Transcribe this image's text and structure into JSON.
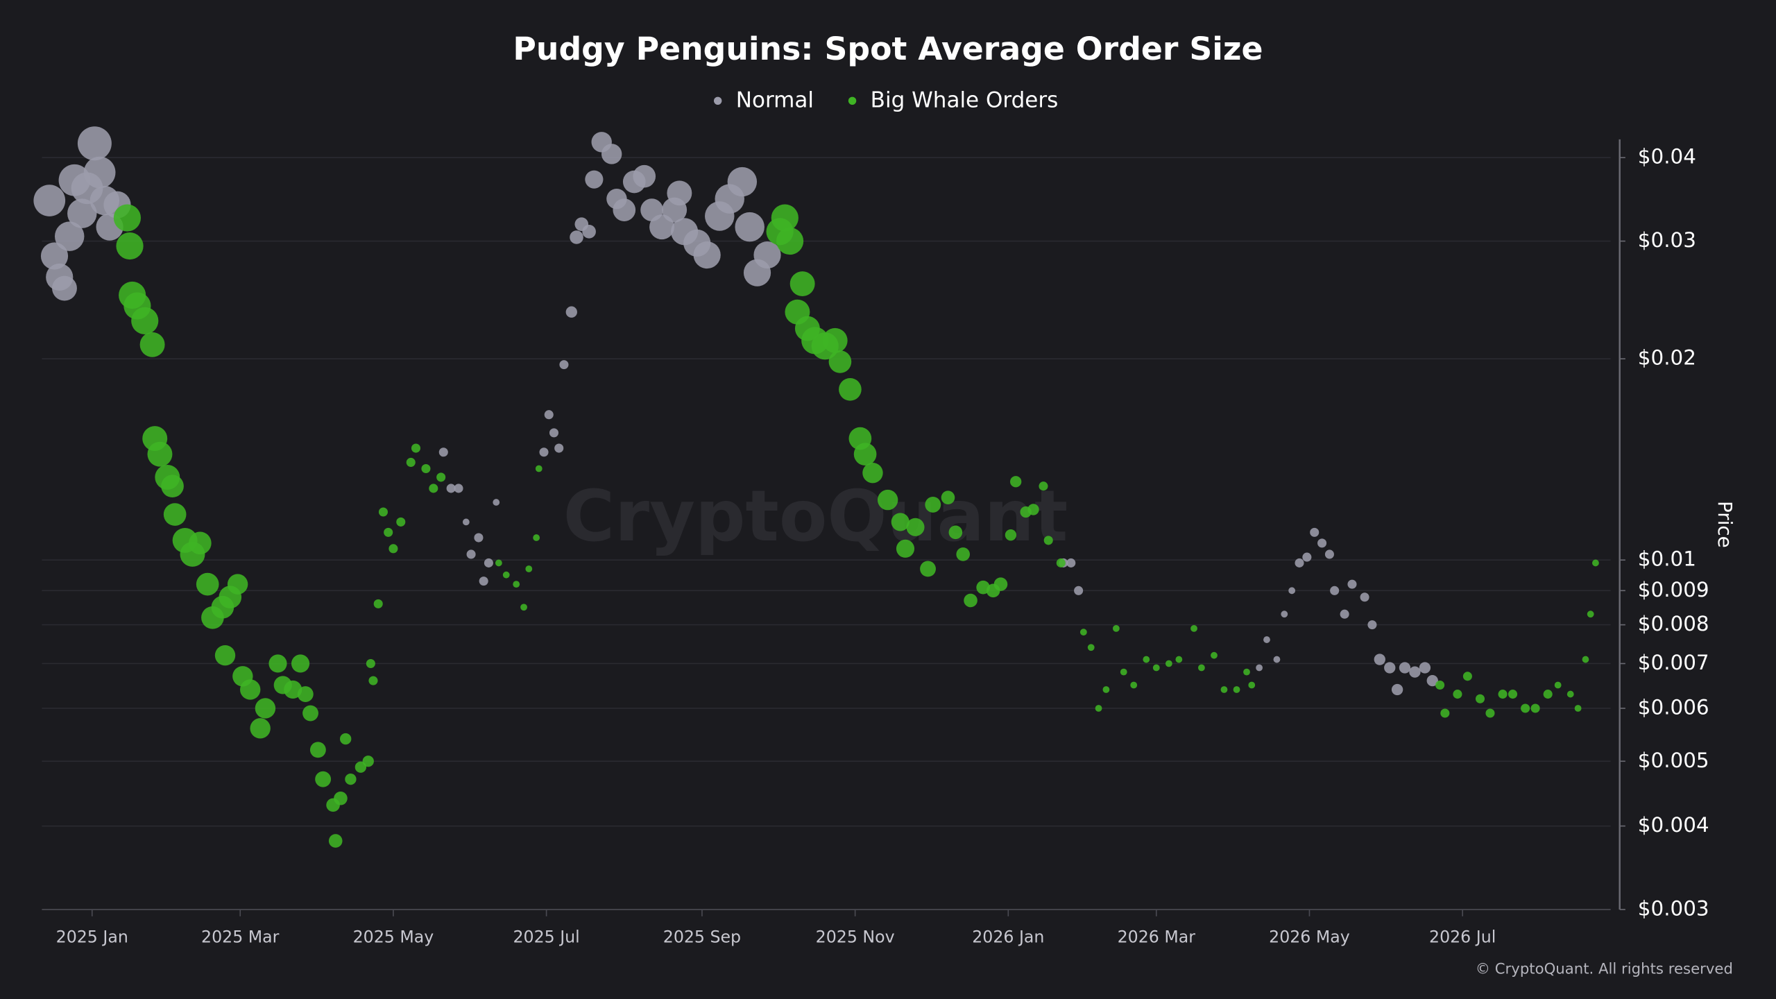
{
  "chart_data": {
    "type": "bubble",
    "title": "Pudgy Penguins: Spot Average Order Size",
    "y_label": "Price",
    "y_scale": "log",
    "y_axis_side": "right",
    "grid": true,
    "legend": "top",
    "watermark": "CryptoQuant",
    "copyright": "© CryptoQuant. All rights reserved",
    "xlim": [
      "2024-12-12",
      "2026-08-29"
    ],
    "xticks": [
      {
        "value": "2025-01-01",
        "label": "2025 Jan"
      },
      {
        "value": "2025-03-01",
        "label": "2025 Mar"
      },
      {
        "value": "2025-05-01",
        "label": "2025 May"
      },
      {
        "value": "2025-07-01",
        "label": "2025 Jul"
      },
      {
        "value": "2025-09-01",
        "label": "2025 Sep"
      },
      {
        "value": "2025-11-01",
        "label": "2025 Nov"
      },
      {
        "value": "2026-01-01",
        "label": "2026 Jan"
      },
      {
        "value": "2026-03-01",
        "label": "2026 Mar"
      },
      {
        "value": "2026-05-01",
        "label": "2026 May"
      },
      {
        "value": "2026-07-01",
        "label": "2026 Jul"
      }
    ],
    "ylim": [
      0.003,
      0.0426
    ],
    "yticks": [
      {
        "value": 0.04,
        "label": "$0.04"
      },
      {
        "value": 0.03,
        "label": "$0.03"
      },
      {
        "value": 0.02,
        "label": "$0.02"
      },
      {
        "value": 0.01,
        "label": "$0.01"
      },
      {
        "value": 0.009,
        "label": "$0.009"
      },
      {
        "value": 0.008,
        "label": "$0.008"
      },
      {
        "value": 0.007,
        "label": "$0.007"
      },
      {
        "value": 0.006,
        "label": "$0.006"
      },
      {
        "value": 0.005,
        "label": "$0.005"
      },
      {
        "value": 0.004,
        "label": "$0.004"
      },
      {
        "value": 0.003,
        "label": "$0.003"
      }
    ],
    "series": [
      {
        "name": "Normal",
        "color": "#9c9cab",
        "x": [
          "2024-12-15",
          "2024-12-17",
          "2024-12-19",
          "2024-12-21",
          "2024-12-23",
          "2024-12-25",
          "2024-12-28",
          "2024-12-30",
          "2025-01-02",
          "2025-01-04",
          "2025-01-06",
          "2025-01-08",
          "2025-01-11",
          "2025-05-21",
          "2025-05-24",
          "2025-05-27",
          "2025-05-30",
          "2025-06-01",
          "2025-06-04",
          "2025-06-06",
          "2025-06-08",
          "2025-06-11",
          "2025-06-30",
          "2025-07-02",
          "2025-07-04",
          "2025-07-06",
          "2025-07-08",
          "2025-07-11",
          "2025-07-13",
          "2025-07-15",
          "2025-07-18",
          "2025-07-20",
          "2025-07-23",
          "2025-07-27",
          "2025-07-29",
          "2025-08-01",
          "2025-08-05",
          "2025-08-09",
          "2025-08-12",
          "2025-08-16",
          "2025-08-21",
          "2025-08-23",
          "2025-08-25",
          "2025-08-30",
          "2025-09-03",
          "2025-09-08",
          "2025-09-12",
          "2025-09-17",
          "2025-09-20",
          "2025-09-23",
          "2025-09-27",
          "2026-01-23",
          "2026-01-26",
          "2026-01-29",
          "2026-04-11",
          "2026-04-14",
          "2026-04-18",
          "2026-04-21",
          "2026-04-24",
          "2026-04-27",
          "2026-04-30",
          "2026-05-03",
          "2026-05-06",
          "2026-05-09",
          "2026-05-11",
          "2026-05-15",
          "2026-05-18",
          "2026-05-23",
          "2026-05-26",
          "2026-05-29",
          "2026-06-02",
          "2026-06-05",
          "2026-06-08",
          "2026-06-12",
          "2026-06-16",
          "2026-06-19"
        ],
        "values": [
          0.0345,
          0.0285,
          0.0265,
          0.0255,
          0.0305,
          0.037,
          0.033,
          0.036,
          0.042,
          0.038,
          0.0345,
          0.0315,
          0.034,
          0.0145,
          0.0128,
          0.0128,
          0.0114,
          0.0102,
          0.0108,
          0.0093,
          0.0099,
          0.0122,
          0.0145,
          0.0165,
          0.0155,
          0.0147,
          0.0196,
          0.0235,
          0.0304,
          0.0318,
          0.031,
          0.0371,
          0.0422,
          0.0405,
          0.0347,
          0.0334,
          0.0368,
          0.0375,
          0.0334,
          0.0315,
          0.0334,
          0.0354,
          0.031,
          0.0298,
          0.0286,
          0.0327,
          0.0347,
          0.0368,
          0.0315,
          0.0269,
          0.0286,
          0.0099,
          0.0099,
          0.009,
          0.0069,
          0.0076,
          0.0071,
          0.0083,
          0.009,
          0.0099,
          0.0101,
          0.011,
          0.0106,
          0.0102,
          0.009,
          0.0083,
          0.0092,
          0.0088,
          0.008,
          0.0071,
          0.0069,
          0.0064,
          0.0069,
          0.0068,
          0.0069,
          0.0066
        ],
        "sizes": [
          14,
          12,
          12,
          11,
          13,
          14,
          13,
          14,
          15,
          14,
          13,
          12,
          12,
          4,
          4,
          4,
          3,
          4,
          4,
          4,
          4,
          3,
          4,
          4,
          4,
          4,
          4,
          5,
          6,
          6,
          6,
          8,
          9,
          9,
          9,
          10,
          10,
          10,
          10,
          11,
          11,
          11,
          12,
          12,
          12,
          13,
          13,
          13,
          13,
          12,
          12,
          4,
          4,
          4,
          3,
          3,
          3,
          3,
          3,
          4,
          4,
          4,
          4,
          4,
          4,
          4,
          4,
          4,
          4,
          5,
          5,
          5,
          5,
          5,
          5,
          5
        ]
      },
      {
        "name": "Big Whale Orders",
        "color": "#3fb424",
        "x": [
          "2025-01-15",
          "2025-01-16",
          "2025-01-17",
          "2025-01-19",
          "2025-01-22",
          "2025-01-25",
          "2025-01-26",
          "2025-01-28",
          "2025-01-31",
          "2025-02-02",
          "2025-02-03",
          "2025-02-07",
          "2025-02-10",
          "2025-02-13",
          "2025-02-16",
          "2025-02-18",
          "2025-02-22",
          "2025-02-23",
          "2025-02-25",
          "2025-02-28",
          "2025-03-02",
          "2025-03-05",
          "2025-03-09",
          "2025-03-11",
          "2025-03-16",
          "2025-03-18",
          "2025-03-22",
          "2025-03-25",
          "2025-03-27",
          "2025-03-29",
          "2025-04-01",
          "2025-04-03",
          "2025-04-07",
          "2025-04-08",
          "2025-04-10",
          "2025-04-12",
          "2025-04-14",
          "2025-04-18",
          "2025-04-21",
          "2025-04-22",
          "2025-04-23",
          "2025-04-25",
          "2025-04-27",
          "2025-04-29",
          "2025-05-01",
          "2025-05-04",
          "2025-05-08",
          "2025-05-10",
          "2025-05-14",
          "2025-05-17",
          "2025-05-20",
          "2025-06-12",
          "2025-06-15",
          "2025-06-19",
          "2025-06-22",
          "2025-06-24",
          "2025-06-27",
          "2025-06-28",
          "2025-10-02",
          "2025-10-04",
          "2025-10-06",
          "2025-10-09",
          "2025-10-11",
          "2025-10-13",
          "2025-10-16",
          "2025-10-20",
          "2025-10-24",
          "2025-10-26",
          "2025-10-30",
          "2025-11-03",
          "2025-11-05",
          "2025-11-08",
          "2025-11-14",
          "2025-11-19",
          "2025-11-21",
          "2025-11-25",
          "2025-11-30",
          "2025-12-02",
          "2025-12-08",
          "2025-12-11",
          "2025-12-14",
          "2025-12-17",
          "2025-12-22",
          "2025-12-26",
          "2025-12-29",
          "2026-01-02",
          "2026-01-04",
          "2026-01-08",
          "2026-01-11",
          "2026-01-15",
          "2026-01-17",
          "2026-01-22",
          "2026-01-31",
          "2026-02-03",
          "2026-02-06",
          "2026-02-09",
          "2026-02-13",
          "2026-02-16",
          "2026-02-20",
          "2026-02-25",
          "2026-03-01",
          "2026-03-06",
          "2026-03-10",
          "2026-03-16",
          "2026-03-19",
          "2026-03-24",
          "2026-03-28",
          "2026-04-02",
          "2026-04-06",
          "2026-04-08",
          "2026-06-22",
          "2026-06-24",
          "2026-06-29",
          "2026-07-03",
          "2026-07-08",
          "2026-07-12",
          "2026-07-17",
          "2026-07-21",
          "2026-07-26",
          "2026-07-30",
          "2026-08-04",
          "2026-08-08",
          "2026-08-13",
          "2026-08-16",
          "2026-08-19",
          "2026-08-21",
          "2026-08-23"
        ],
        "values": [
          0.0325,
          0.0295,
          0.0249,
          0.024,
          0.0228,
          0.021,
          0.0152,
          0.0144,
          0.0133,
          0.0129,
          0.0117,
          0.0107,
          0.0102,
          0.0106,
          0.0092,
          0.0082,
          0.0085,
          0.0072,
          0.0088,
          0.0092,
          0.0067,
          0.0064,
          0.0056,
          0.006,
          0.007,
          0.0065,
          0.0064,
          0.007,
          0.0063,
          0.0059,
          0.0052,
          0.0047,
          0.0043,
          0.0038,
          0.0044,
          0.0054,
          0.0047,
          0.0049,
          0.005,
          0.007,
          0.0066,
          0.0086,
          0.0118,
          0.011,
          0.0104,
          0.0114,
          0.014,
          0.0147,
          0.0137,
          0.0128,
          0.0133,
          0.0099,
          0.0095,
          0.0092,
          0.0085,
          0.0097,
          0.0108,
          0.0137,
          0.031,
          0.0325,
          0.03,
          0.0235,
          0.0259,
          0.0222,
          0.0213,
          0.0209,
          0.0213,
          0.0198,
          0.018,
          0.0152,
          0.0144,
          0.0135,
          0.0123,
          0.0114,
          0.0104,
          0.0112,
          0.0097,
          0.0121,
          0.0124,
          0.011,
          0.0102,
          0.0087,
          0.0091,
          0.009,
          0.0092,
          0.0109,
          0.0131,
          0.0118,
          0.0119,
          0.0129,
          0.0107,
          0.0099,
          0.0078,
          0.0074,
          0.006,
          0.0064,
          0.0079,
          0.0068,
          0.0065,
          0.0071,
          0.0069,
          0.007,
          0.0071,
          0.0079,
          0.0069,
          0.0072,
          0.0064,
          0.0064,
          0.0068,
          0.0065,
          0.0065,
          0.0059,
          0.0063,
          0.0067,
          0.0062,
          0.0059,
          0.0063,
          0.0063,
          0.006,
          0.006,
          0.0063,
          0.0065,
          0.0063,
          0.006,
          0.0071,
          0.0083,
          0.0099
        ],
        "sizes": [
          12,
          12,
          12,
          12,
          12,
          11,
          11,
          11,
          11,
          10,
          10,
          11,
          11,
          10,
          10,
          10,
          10,
          9,
          10,
          9,
          9,
          9,
          9,
          9,
          8,
          8,
          8,
          8,
          7,
          7,
          7,
          7,
          6,
          6,
          6,
          5,
          5,
          5,
          5,
          4,
          4,
          4,
          4,
          4,
          4,
          4,
          4,
          4,
          4,
          4,
          4,
          3,
          3,
          3,
          3,
          3,
          3,
          3,
          12,
          12,
          12,
          11,
          11,
          11,
          12,
          12,
          11,
          10,
          10,
          10,
          10,
          9,
          9,
          8,
          8,
          8,
          7,
          7,
          6,
          6,
          6,
          6,
          6,
          6,
          6,
          5,
          5,
          5,
          5,
          4,
          4,
          4,
          3,
          3,
          3,
          3,
          3,
          3,
          3,
          3,
          3,
          3,
          3,
          3,
          3,
          3,
          3,
          3,
          3,
          3,
          4,
          4,
          4,
          4,
          4,
          4,
          4,
          4,
          4,
          4,
          4,
          3,
          3,
          3,
          3,
          3,
          3
        ]
      }
    ]
  }
}
